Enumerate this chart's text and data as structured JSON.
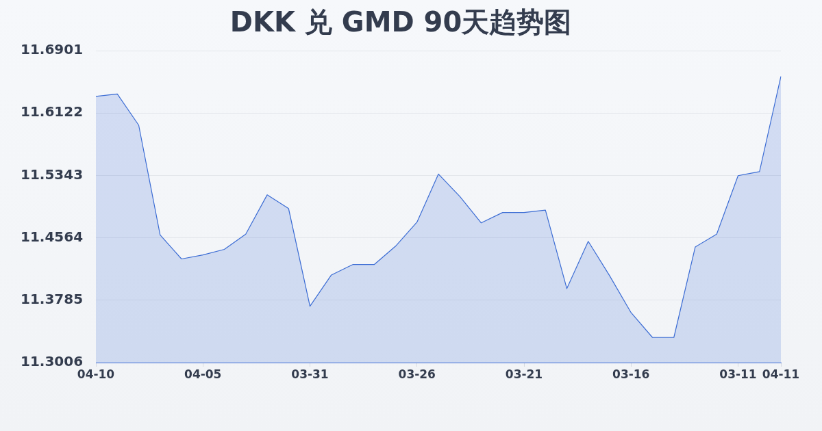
{
  "chart_data": {
    "type": "area",
    "title": "DKK 兑 GMD 90天趋势图",
    "categories": [
      "04-10",
      null,
      null,
      null,
      null,
      "04-05",
      null,
      null,
      null,
      null,
      "03-31",
      null,
      null,
      null,
      null,
      "03-26",
      null,
      null,
      null,
      null,
      "03-21",
      null,
      null,
      null,
      null,
      "03-16",
      null,
      null,
      null,
      null,
      "03-11",
      null,
      "04-11"
    ],
    "values": [
      11.633,
      11.636,
      11.597,
      11.46,
      11.43,
      11.435,
      11.442,
      11.461,
      11.51,
      11.493,
      11.371,
      11.41,
      11.423,
      11.423,
      11.446,
      11.476,
      11.536,
      11.508,
      11.475,
      11.488,
      11.488,
      11.491,
      11.393,
      11.452,
      11.409,
      11.363,
      11.332,
      11.332,
      11.445,
      11.461,
      11.534,
      11.539,
      11.658
    ],
    "color": "#3b6cd4",
    "ylim": [
      11.3006,
      11.6901
    ],
    "yticks": [
      11.3006,
      11.3785,
      11.4564,
      11.5343,
      11.6122,
      11.6901
    ],
    "grid": "y",
    "marker": "none",
    "line_style": "solid"
  }
}
